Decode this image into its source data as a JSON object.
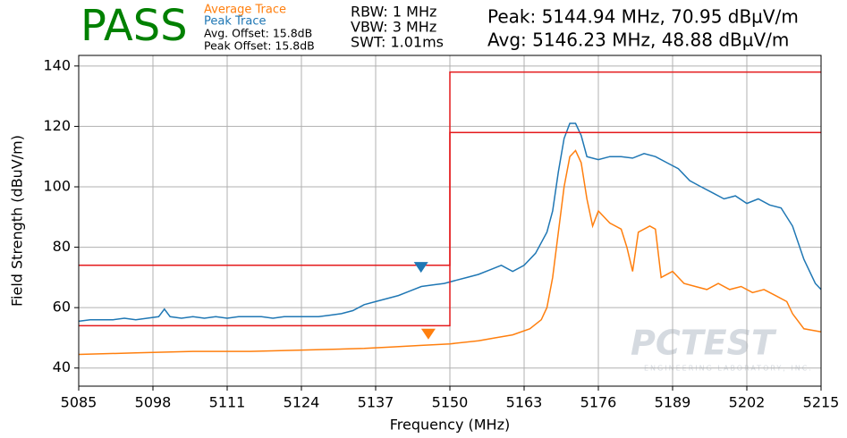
{
  "chart_data": {
    "type": "line",
    "verdict": "PASS",
    "legend": [
      "Average Trace",
      "Peak Trace"
    ],
    "offsets": [
      "Avg. Offset: 15.8dB",
      "Peak Offset: 15.8dB"
    ],
    "settings": [
      "RBW: 1 MHz",
      "VBW: 3 MHz",
      "SWT: 1.01ms"
    ],
    "readouts": [
      "Peak: 5144.94 MHz, 70.95 dBµV/m",
      "Avg: 5146.23 MHz, 48.88 dBµV/m"
    ],
    "watermark": [
      "PCTEST",
      "ENGINEERING LABORATORY, INC."
    ],
    "xlabel": "Frequency (MHz)",
    "ylabel": "Field Strength (dBuV/m)",
    "xlim": [
      5085,
      5215
    ],
    "ylim": [
      34,
      143.5
    ],
    "xticks": [
      5085,
      5098,
      5111,
      5124,
      5137,
      5150,
      5163,
      5176,
      5189,
      5202,
      5215
    ],
    "yticks": [
      40,
      60,
      80,
      100,
      120,
      140
    ],
    "grid": true,
    "series": [
      {
        "name": "Peak Trace",
        "color": "#1f77b4",
        "x": [
          5085,
          5087,
          5089,
          5091,
          5093,
          5095,
          5097,
          5099,
          5100,
          5101,
          5103,
          5105,
          5107,
          5109,
          5111,
          5113,
          5115,
          5117,
          5119,
          5121,
          5123,
          5125,
          5127,
          5129,
          5131,
          5133,
          5135,
          5137,
          5139,
          5141,
          5143,
          5145,
          5147,
          5149,
          5151,
          5153,
          5155,
          5157,
          5159,
          5161,
          5163,
          5165,
          5167,
          5168,
          5169,
          5170,
          5171,
          5172,
          5173,
          5174,
          5176,
          5178,
          5180,
          5182,
          5184,
          5186,
          5188,
          5190,
          5192,
          5194,
          5196,
          5198,
          5200,
          5202,
          5204,
          5206,
          5208,
          5210,
          5212,
          5214,
          5215
        ],
        "values": [
          55.5,
          56,
          56,
          56,
          56.5,
          56,
          56.5,
          57,
          59.5,
          57,
          56.5,
          57,
          56.5,
          57,
          56.5,
          57,
          57,
          57,
          56.5,
          57,
          57,
          57,
          57,
          57.5,
          58,
          59,
          61,
          62,
          63,
          64,
          65.5,
          67,
          67.5,
          68,
          69,
          70,
          71,
          72.5,
          74,
          72,
          74,
          78,
          85,
          92,
          105,
          116,
          121,
          121,
          117,
          110,
          109,
          110,
          110,
          109.5,
          111,
          110,
          108,
          106,
          102,
          100,
          98,
          96,
          97,
          94.5,
          96,
          94,
          93,
          87,
          76,
          68,
          66
        ]
      },
      {
        "name": "Average Trace",
        "color": "#ff7f0e",
        "x": [
          5085,
          5095,
          5105,
          5115,
          5125,
          5135,
          5140,
          5145,
          5150,
          5155,
          5158,
          5161,
          5164,
          5166,
          5167,
          5168,
          5169,
          5170,
          5171,
          5172,
          5173,
          5174,
          5175,
          5176,
          5178,
          5180,
          5181,
          5182,
          5183,
          5185,
          5186,
          5187,
          5189,
          5191,
          5193,
          5195,
          5197,
          5199,
          5201,
          5203,
          5205,
          5207,
          5209,
          5210,
          5212,
          5215
        ],
        "values": [
          44.5,
          45,
          45.5,
          45.5,
          46,
          46.5,
          47,
          47.5,
          48,
          49,
          50,
          51,
          53,
          56,
          60,
          70,
          85,
          100,
          110,
          112,
          108,
          96,
          87,
          92,
          88,
          86,
          80,
          72,
          85,
          87,
          86,
          70,
          72,
          68,
          67,
          66,
          68,
          66,
          67,
          65,
          66,
          64,
          62,
          58,
          53,
          52
        ]
      }
    ],
    "limits": [
      {
        "color": "#e41a1c",
        "x": [
          5085,
          5150,
          5150,
          5215
        ],
        "values": [
          74,
          74,
          138,
          138
        ]
      },
      {
        "color": "#e41a1c",
        "x": [
          5085,
          5150,
          5150,
          5215
        ],
        "values": [
          54,
          54,
          118,
          118
        ]
      }
    ],
    "markers": [
      {
        "color": "#1f77b4",
        "x": 5144.94,
        "y": 70.95
      },
      {
        "color": "#ff7f0e",
        "x": 5146.23,
        "y": 48.88
      }
    ]
  }
}
